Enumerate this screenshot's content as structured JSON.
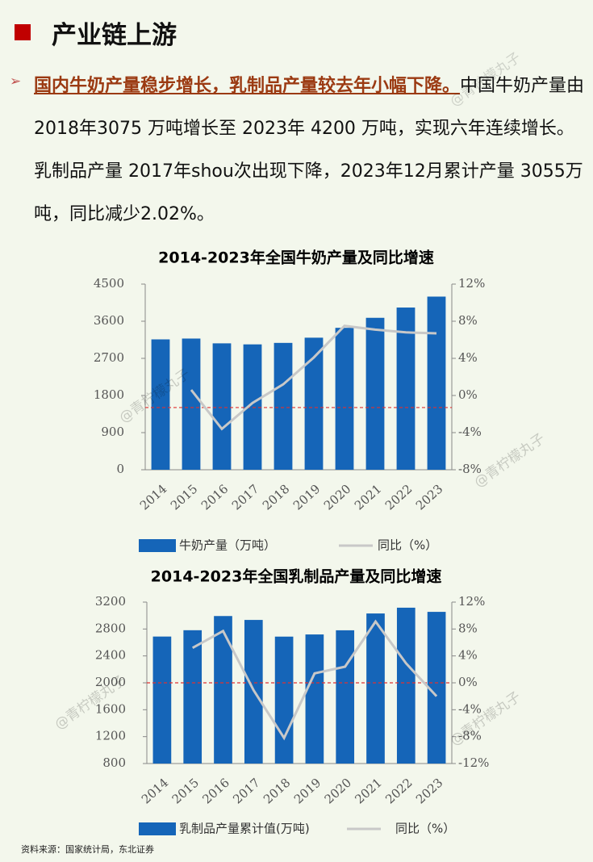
{
  "header": {
    "title": "产业链上游"
  },
  "paragraph": {
    "lead": "国内牛奶产量稳步增长，乳制品产量较去年小幅下降。",
    "body": "中国牛奶产量由 2018年3075 万吨增长至 2023年 4200 万吨，实现六年连续增长。乳制品产量 2017年shou次出现下降，2023年12月累计产量 3055万吨，同比减少2.02%。"
  },
  "watermark": "@青柠檬丸子",
  "source": "资料来源：国家统计局，东北证券",
  "chart_data": [
    {
      "type": "bar",
      "title": "2014-2023年全国牛奶产量及同比增速",
      "categories": [
        "2014",
        "2015",
        "2016",
        "2017",
        "2018",
        "2019",
        "2020",
        "2021",
        "2022",
        "2023"
      ],
      "series": [
        {
          "name": "牛奶产量（万吨）",
          "color": "#1565b8",
          "type": "bar",
          "values": [
            3160,
            3180,
            3064,
            3039,
            3075,
            3201,
            3440,
            3683,
            3932,
            4197
          ]
        },
        {
          "name": "同比（%）",
          "color": "#c8c8c8",
          "type": "line",
          "axis": "y2",
          "values": [
            null,
            0.6,
            -3.6,
            -0.8,
            1.2,
            4.1,
            7.5,
            7.1,
            6.8,
            6.7
          ]
        }
      ],
      "ylim": [
        0,
        4500
      ],
      "yticks": [
        0,
        900,
        1800,
        2700,
        3600,
        4500
      ],
      "y2lim": [
        -8,
        12
      ],
      "y2ticks": [
        {
          "value": -8,
          "label": "-8%"
        },
        {
          "value": -4,
          "label": "-4%"
        },
        {
          "value": 0,
          "label": "0%"
        },
        {
          "value": 4,
          "label": "4%"
        },
        {
          "value": 8,
          "label": "8%"
        },
        {
          "value": 12,
          "label": "12%"
        }
      ],
      "hline": {
        "value": -1.3,
        "axis": "y2",
        "color": "#e03030"
      }
    },
    {
      "type": "bar",
      "title": "2014-2023年全国乳制品产量及同比增速",
      "categories": [
        "2014",
        "2015",
        "2016",
        "2017",
        "2018",
        "2019",
        "2020",
        "2021",
        "2022",
        "2023"
      ],
      "series": [
        {
          "name": "乳制品产量累计值(万吨)",
          "color": "#1565b8",
          "type": "bar",
          "values": [
            2688,
            2782,
            2993,
            2935,
            2687,
            2719,
            2781,
            3031,
            3117,
            3055
          ]
        },
        {
          "name": "同比（%）",
          "color": "#c8c8c8",
          "type": "line",
          "axis": "y2",
          "values": [
            null,
            5.2,
            7.7,
            -1.1,
            -8.2,
            1.4,
            2.4,
            9.1,
            2.9,
            -2.0
          ]
        }
      ],
      "ylim": [
        800,
        3200
      ],
      "yticks": [
        800,
        1200,
        1600,
        2000,
        2400,
        2800,
        3200
      ],
      "y2lim": [
        -12,
        12
      ],
      "y2ticks": [
        {
          "value": -12,
          "label": "-12%"
        },
        {
          "value": -8,
          "label": "-8%"
        },
        {
          "value": -4,
          "label": "-4%"
        },
        {
          "value": 0,
          "label": "0%"
        },
        {
          "value": 4,
          "label": "4%"
        },
        {
          "value": 8,
          "label": "8%"
        },
        {
          "value": 12,
          "label": "12%"
        }
      ],
      "hline": {
        "value": 0,
        "axis": "y2",
        "color": "#e03030"
      }
    }
  ]
}
